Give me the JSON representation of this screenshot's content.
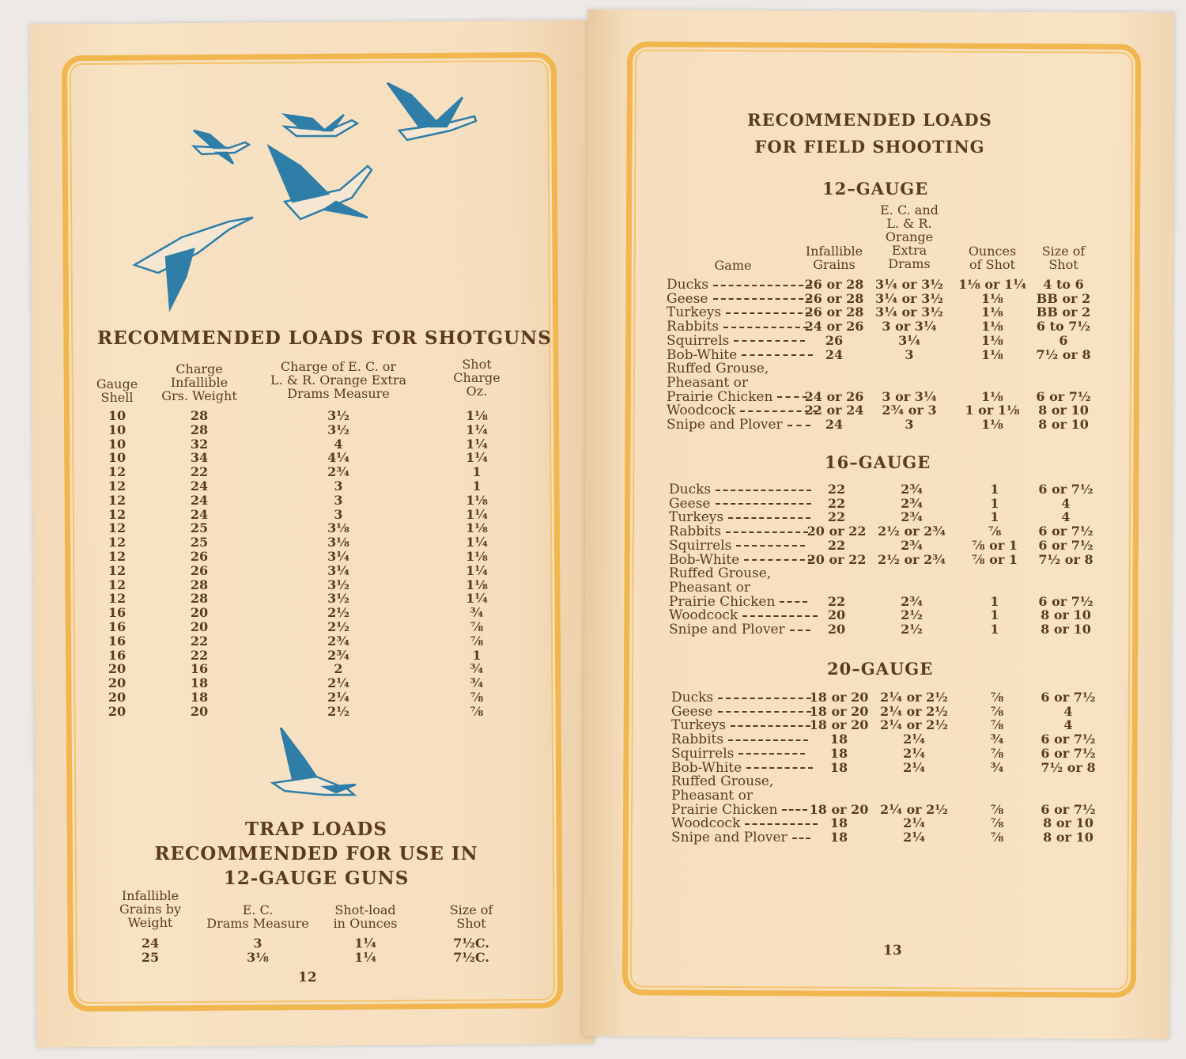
{
  "left_page": {
    "title": "RECOMMENDED LOADS FOR SHOTGUNS",
    "table": {
      "headers": [
        "Gauge\nShell",
        "Charge\nInfallible\nGrs. Weight",
        "Charge of E. C. or\nL. & R. Orange Extra\nDrams Measure",
        "Shot\nCharge\nOz."
      ],
      "rows": [
        [
          "10",
          "28",
          "3½",
          "1⅛"
        ],
        [
          "10",
          "28",
          "3½",
          "1¼"
        ],
        [
          "10",
          "32",
          "4",
          "1¼"
        ],
        [
          "10",
          "34",
          "4¼",
          "1¼"
        ],
        [
          "12",
          "22",
          "2¾",
          "1"
        ],
        [
          "12",
          "24",
          "3",
          "1"
        ],
        [
          "12",
          "24",
          "3",
          "1⅛"
        ],
        [
          "12",
          "24",
          "3",
          "1¼"
        ],
        [
          "12",
          "25",
          "3⅛",
          "1⅛"
        ],
        [
          "12",
          "25",
          "3⅛",
          "1¼"
        ],
        [
          "12",
          "26",
          "3¼",
          "1⅛"
        ],
        [
          "12",
          "26",
          "3¼",
          "1¼"
        ],
        [
          "12",
          "28",
          "3½",
          "1⅛"
        ],
        [
          "12",
          "28",
          "3½",
          "1¼"
        ],
        [
          "16",
          "20",
          "2½",
          "¾"
        ],
        [
          "16",
          "20",
          "2½",
          "⅞"
        ],
        [
          "16",
          "22",
          "2¾",
          "⅞"
        ],
        [
          "16",
          "22",
          "2¾",
          "1"
        ],
        [
          "20",
          "16",
          "2",
          "¾"
        ],
        [
          "20",
          "18",
          "2¼",
          "¾"
        ],
        [
          "20",
          "18",
          "2¼",
          "⅞"
        ],
        [
          "20",
          "20",
          "2½",
          "⅞"
        ]
      ]
    },
    "trap": {
      "title_lines": [
        "TRAP LOADS",
        "RECOMMENDED FOR USE IN",
        "12-GAUGE GUNS"
      ],
      "headers": [
        "Infallible\nGrains by\nWeight",
        "E. C.\nDrams Measure",
        "Shot-load\nin Ounces",
        "Size of\nShot"
      ],
      "rows": [
        [
          "24",
          "3",
          "1¼",
          "7½C."
        ],
        [
          "25",
          "3⅛",
          "1¼",
          "7½C."
        ]
      ]
    },
    "page_number": "12",
    "illustration": "flying-geese-icon",
    "illustration_color": "#2f7ea8"
  },
  "right_page": {
    "title_lines": [
      "RECOMMENDED LOADS",
      "FOR FIELD SHOOTING"
    ],
    "headers": [
      "Game",
      "Infallible\nGrains",
      "E. C. and\nL. & R.\nOrange\nExtra\nDrams",
      "Ounces\nof Shot",
      "Size of\nShot"
    ],
    "sections": [
      {
        "title": "12–GAUGE",
        "rows": [
          [
            "Ducks",
            "26 or 28",
            "3¼ or 3½",
            "1⅛ or 1¼",
            "4 to 6"
          ],
          [
            "Geese",
            "26 or 28",
            "3¼ or 3½",
            "1⅛",
            "BB or 2"
          ],
          [
            "Turkeys",
            "26 or 28",
            "3¼ or 3½",
            "1⅛",
            "BB or 2"
          ],
          [
            "Rabbits",
            "24 or 26",
            "3 or 3¼",
            "1⅛",
            "6 to 7½"
          ],
          [
            "Squirrels",
            "26",
            "3¼",
            "1⅛",
            "6"
          ],
          [
            "Bob-White",
            "24",
            "3",
            "1⅛",
            "7½ or 8"
          ],
          [
            "Ruffed Grouse,",
            "",
            "",
            "",
            ""
          ],
          [
            "Pheasant or",
            "",
            "",
            "",
            ""
          ],
          [
            "Prairie Chicken",
            "24 or 26",
            "3 or 3¼",
            "1⅛",
            "6 or 7½"
          ],
          [
            "Woodcock",
            "22 or 24",
            "2¾ or 3",
            "1 or 1⅛",
            "8 or 10"
          ],
          [
            "Snipe and Plover",
            "24",
            "3",
            "1⅛",
            "8 or 10"
          ]
        ]
      },
      {
        "title": "16–GAUGE",
        "rows": [
          [
            "Ducks",
            "22",
            "2¾",
            "1",
            "6 or 7½"
          ],
          [
            "Geese",
            "22",
            "2¾",
            "1",
            "4"
          ],
          [
            "Turkeys",
            "22",
            "2¾",
            "1",
            "4"
          ],
          [
            "Rabbits",
            "20 or 22",
            "2½ or 2¾",
            "⅞",
            "6 or 7½"
          ],
          [
            "Squirrels",
            "22",
            "2¾",
            "⅞ or 1",
            "6 or 7½"
          ],
          [
            "Bob-White",
            "20 or 22",
            "2½ or 2¾",
            "⅞ or 1",
            "7½ or 8"
          ],
          [
            "Ruffed Grouse,",
            "",
            "",
            "",
            ""
          ],
          [
            "Pheasant or",
            "",
            "",
            "",
            ""
          ],
          [
            "Prairie Chicken",
            "22",
            "2¾",
            "1",
            "6 or 7½"
          ],
          [
            "Woodcock",
            "20",
            "2½",
            "1",
            "8 or 10"
          ],
          [
            "Snipe and Plover",
            "20",
            "2½",
            "1",
            "8 or 10"
          ]
        ]
      },
      {
        "title": "20–GAUGE",
        "rows": [
          [
            "Ducks",
            "18 or 20",
            "2¼ or 2½",
            "⅞",
            "6 or 7½"
          ],
          [
            "Geese",
            "18 or 20",
            "2¼ or 2½",
            "⅞",
            "4"
          ],
          [
            "Turkeys",
            "18 or 20",
            "2¼ or 2½",
            "⅞",
            "4"
          ],
          [
            "Rabbits",
            "18",
            "2¼",
            "¾",
            "6 or 7½"
          ],
          [
            "Squirrels",
            "18",
            "2¼",
            "⅞",
            "6 or 7½"
          ],
          [
            "Bob-White",
            "18",
            "2¼",
            "¾",
            "7½ or 8"
          ],
          [
            "Ruffed Grouse,",
            "",
            "",
            "",
            ""
          ],
          [
            "Pheasant or",
            "",
            "",
            "",
            ""
          ],
          [
            "Prairie Chicken",
            "18 or 20",
            "2¼ or 2½",
            "⅞",
            "6 or 7½"
          ],
          [
            "Woodcock",
            "18",
            "2¼",
            "⅞",
            "8 or 10"
          ],
          [
            "Snipe and Plover",
            "18",
            "2¼",
            "⅞",
            "8 or 10"
          ]
        ]
      }
    ],
    "page_number": "13",
    "border_color": "#f2b64e"
  }
}
